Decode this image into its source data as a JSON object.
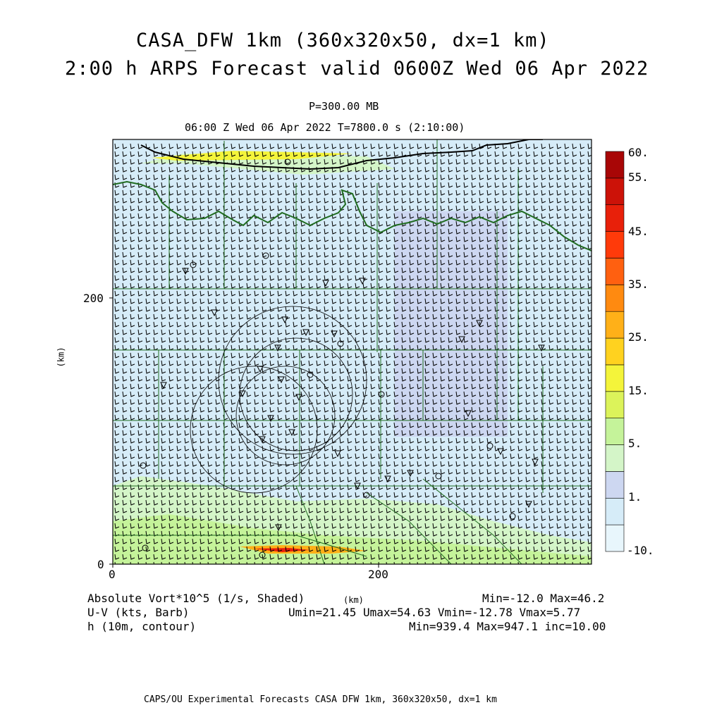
{
  "header": {
    "title_line1": "CASA_DFW 1km (360x320x50, dx=1 km)",
    "title_line2": "2:00 h ARPS Forecast valid 0600Z Wed 06 Apr 2022",
    "level": "P=300.00 MB",
    "time_info": "06:00 Z Wed 06 Apr 2022   T=7800.0 s (2:10:00)"
  },
  "axes": {
    "y_tick_200": "200",
    "y_tick_0": "0",
    "x_tick_0": "0",
    "x_tick_200": "200",
    "y_unit": "(km)",
    "x_unit": "(km)"
  },
  "colorbar": {
    "labels": [
      "60.",
      "55.",
      "45.",
      "35.",
      "25.",
      "15.",
      "5.",
      "1.",
      "-10."
    ],
    "colors": [
      "#e8f6fc",
      "#d6ecf8",
      "#cdd7f1",
      "#d4f5c8",
      "#c5f39a",
      "#dcf35a",
      "#f4f43a",
      "#ffd21f",
      "#ffb018",
      "#ff8a10",
      "#ff6010",
      "#ff3a0a",
      "#e8200a",
      "#cc1208",
      "#a80606"
    ]
  },
  "footer": {
    "field1": "Absolute Vort*10^5 (1/s, Shaded)",
    "field1_minmax": "Min=-12.0 Max=46.2",
    "field2": "U-V (kts, Barb)",
    "field2_minmax": "Umin=21.45 Umax=54.63 Vmin=-12.78 Vmax=5.77",
    "field3": "h (10m, contour)",
    "field3_minmax": "Min=939.4 Max=947.1 inc=10.00",
    "km_label": "(km)",
    "credit": "CAPS/OU Experimental Forecasts  CASA DFW 1km, 360x320x50, dx=1 km"
  }
}
